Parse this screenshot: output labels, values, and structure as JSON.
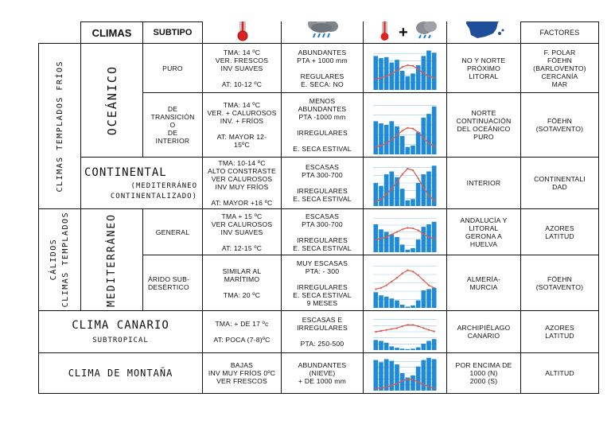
{
  "header": {
    "climas": "CLIMAS",
    "subtipo": "SUBTIPO",
    "factores": "FACTORES",
    "icon_temperature": "thermometer-icon",
    "icon_precipitation": "rain-cloud-icon",
    "icon_combined": "thermometer-plus-cloud-icon",
    "plus": "+",
    "icon_map": "spain-map-icon"
  },
  "groups": {
    "templados_frios": "CLIMAS TEMPLADOS FRÍOS",
    "templados_calidos_1": "CLIMAS TEMPLADOS",
    "templados_calidos_2": "CÁLIDOS",
    "oceanico": "OCEÁNICO",
    "mediterraneo": "MEDITERRÁNEO",
    "continental": "CONTINENTAL",
    "continental_sub1": "(MEDITERRÁNEO",
    "continental_sub2": "CONTINENTALIZADO)",
    "canario": "CLIMA CANARIO",
    "canario_sub": "SUBTROPICAL",
    "montana": "CLIMA DE MONTAÑA"
  },
  "rows": {
    "puro": {
      "subtipo": "PURO",
      "temp": [
        "TMA: 14 ºC",
        "VER. FRESCOS",
        "INV SUAVES",
        "",
        "AT: 10-12 ºC"
      ],
      "precip": [
        "ABUNDANTES",
        "PTA + 1000 mm",
        "",
        "REGULARES",
        "E. SECA: NO"
      ],
      "location": [
        "NO Y NORTE",
        "PRÓXIMO",
        "LITORAL"
      ],
      "factores": [
        "F. POLAR",
        "FÖEHN",
        "(BARLOVENTO)",
        "CERCANÍA",
        "MAR"
      ],
      "chart": {
        "bars": [
          62,
          58,
          60,
          50,
          55,
          35,
          25,
          30,
          45,
          62,
          72,
          68
        ],
        "temp": [
          20,
          22,
          25,
          30,
          35,
          42,
          45,
          44,
          38,
          30,
          25,
          22
        ]
      }
    },
    "transicion": {
      "subtipo": [
        "DE",
        "TRANSICIÓN",
        "O",
        "DE",
        "INTERIOR"
      ],
      "temp": [
        "TMA: 14 ºC",
        "VER. + CALUROSOS",
        "INV. + FRÍOS",
        "",
        "AT: MAYOR 12-",
        "15ºC"
      ],
      "precip": [
        "MENOS",
        "ABUNDANTES",
        "PTA -1000 mm",
        "",
        "IRREGULARES",
        "",
        "E. SECA ESTIVAL"
      ],
      "location": [
        "NORTE",
        "CONTINUACIÓN",
        "DEL OCEÁNICO",
        "PURO"
      ],
      "factores": [
        "FÖEHN",
        "(SOTAVENTO)"
      ],
      "chart": {
        "bars": [
          45,
          42,
          40,
          45,
          38,
          25,
          10,
          12,
          30,
          50,
          55,
          65
        ],
        "temp": [
          10,
          12,
          15,
          20,
          26,
          32,
          36,
          35,
          30,
          22,
          15,
          11
        ]
      }
    },
    "continental": {
      "temp": [
        "TMA: 10-14 ºC",
        "ALTO CONSTRASTE",
        "VER CALUROSOS",
        "INV MUY FRÍOS",
        "",
        "AT: MAYOR +16 ºC"
      ],
      "precip": [
        "ESCASAS",
        "PTA 300-700",
        "",
        "IRREGULARES",
        "E. SECA ESTIVAL"
      ],
      "location": [
        "INTERIOR"
      ],
      "factores": [
        "CONTINENTALI",
        "DAD"
      ],
      "chart": {
        "bars": [
          40,
          35,
          55,
          60,
          50,
          30,
          10,
          12,
          40,
          55,
          60,
          70
        ],
        "temp": [
          8,
          12,
          20,
          30,
          42,
          55,
          65,
          62,
          48,
          32,
          18,
          10
        ]
      }
    },
    "general": {
      "subtipo": "GENERAL",
      "temp": [
        "TMA + 15 ºC",
        "VER CALUROSOS",
        "INV SUAVES",
        "",
        "AT: 12-15 ºC"
      ],
      "precip": [
        "ESCASAS",
        "PTA 300-700",
        "",
        "IRREGULARES",
        "E. SECA ESTIVAL"
      ],
      "location": [
        "ANDALUCÍA Y",
        "LITORAL",
        "GERONA A",
        "HUELVA"
      ],
      "factores": [
        "AZORES",
        "LATITUD"
      ],
      "chart": {
        "bars": [
          55,
          45,
          40,
          35,
          30,
          15,
          5,
          8,
          25,
          50,
          55,
          60
        ],
        "temp": [
          25,
          27,
          30,
          35,
          40,
          45,
          48,
          47,
          43,
          36,
          30,
          26
        ]
      }
    },
    "arido": {
      "subtipo": [
        "ÁRIDO SUB-",
        "DESÉRTICO"
      ],
      "temp": [
        "SIMILAR AL",
        "MARÍTIMO",
        "",
        "TMA: 20 ºC"
      ],
      "precip": [
        "MUY ESCASAS",
        "PTA: - 300",
        "",
        "IRREGULARES",
        "E. SECA ESTIVAL",
        "9 MESES"
      ],
      "location": [
        "ALMERÍA-",
        "MURCIA"
      ],
      "factores": [
        "FÖEHN",
        "(SOTAVENTO)"
      ],
      "chart": {
        "bars": [
          25,
          20,
          18,
          15,
          12,
          5,
          2,
          4,
          12,
          28,
          30,
          32
        ],
        "temp": [
          30,
          32,
          36,
          42,
          48,
          55,
          60,
          58,
          52,
          44,
          36,
          32
        ]
      }
    },
    "canario": {
      "temp": [
        "TMA: + DE 17 ºc",
        "",
        "AT: POCA (7-8)ºC"
      ],
      "precip": [
        "ESCASAS E",
        "IRREGULARES",
        "",
        "PTA: 250-500"
      ],
      "location": [
        "ARCHIPIÉLAGO",
        "CANARIO"
      ],
      "factores": [
        "AZORES",
        "LATITUD"
      ],
      "chart": {
        "bars": [
          22,
          20,
          16,
          8,
          5,
          3,
          2,
          3,
          6,
          14,
          20,
          24
        ],
        "temp": [
          40,
          42,
          44,
          46,
          48,
          52,
          55,
          55,
          52,
          48,
          44,
          41
        ]
      }
    },
    "montana": {
      "temp": [
        "BAJAS",
        "INV MUY FRÍOS 0ºC",
        "VER FRESCOS"
      ],
      "precip": [
        "ABUNDANTES",
        "(NIEVE)",
        "+ DE 1000 mm"
      ],
      "location": [
        "POR ENCIMA DE",
        "1000 (N)",
        "2000 (S)"
      ],
      "factores": [
        "ALTITUD"
      ],
      "chart": {
        "bars": [
          70,
          65,
          72,
          68,
          60,
          40,
          30,
          35,
          55,
          70,
          75,
          72
        ],
        "temp": [
          5,
          6,
          8,
          12,
          16,
          22,
          26,
          25,
          20,
          14,
          9,
          6
        ]
      }
    }
  },
  "colors": {
    "bar": "#1e8ad8",
    "line": "#d85a4a",
    "grid": "#9bc8e8"
  }
}
